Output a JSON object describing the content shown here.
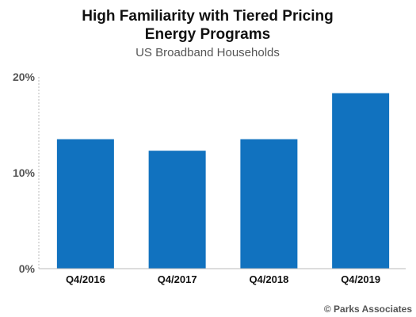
{
  "chart_data": {
    "type": "bar",
    "title": "High Familiarity with Tiered Pricing",
    "title_line2": "Energy Programs",
    "subtitle": "US Broadband Households",
    "categories": [
      "Q4/2016",
      "Q4/2017",
      "Q4/2018",
      "Q4/2019"
    ],
    "values": [
      13.5,
      12.3,
      13.5,
      18.3
    ],
    "yticks": [
      0,
      10,
      20
    ],
    "ytick_labels": [
      "0%",
      "10%",
      "20%"
    ],
    "ylim": [
      0,
      20
    ],
    "grid": false,
    "legend": "none",
    "bar_color": "#1172bf"
  },
  "credit": "© Parks Associates"
}
